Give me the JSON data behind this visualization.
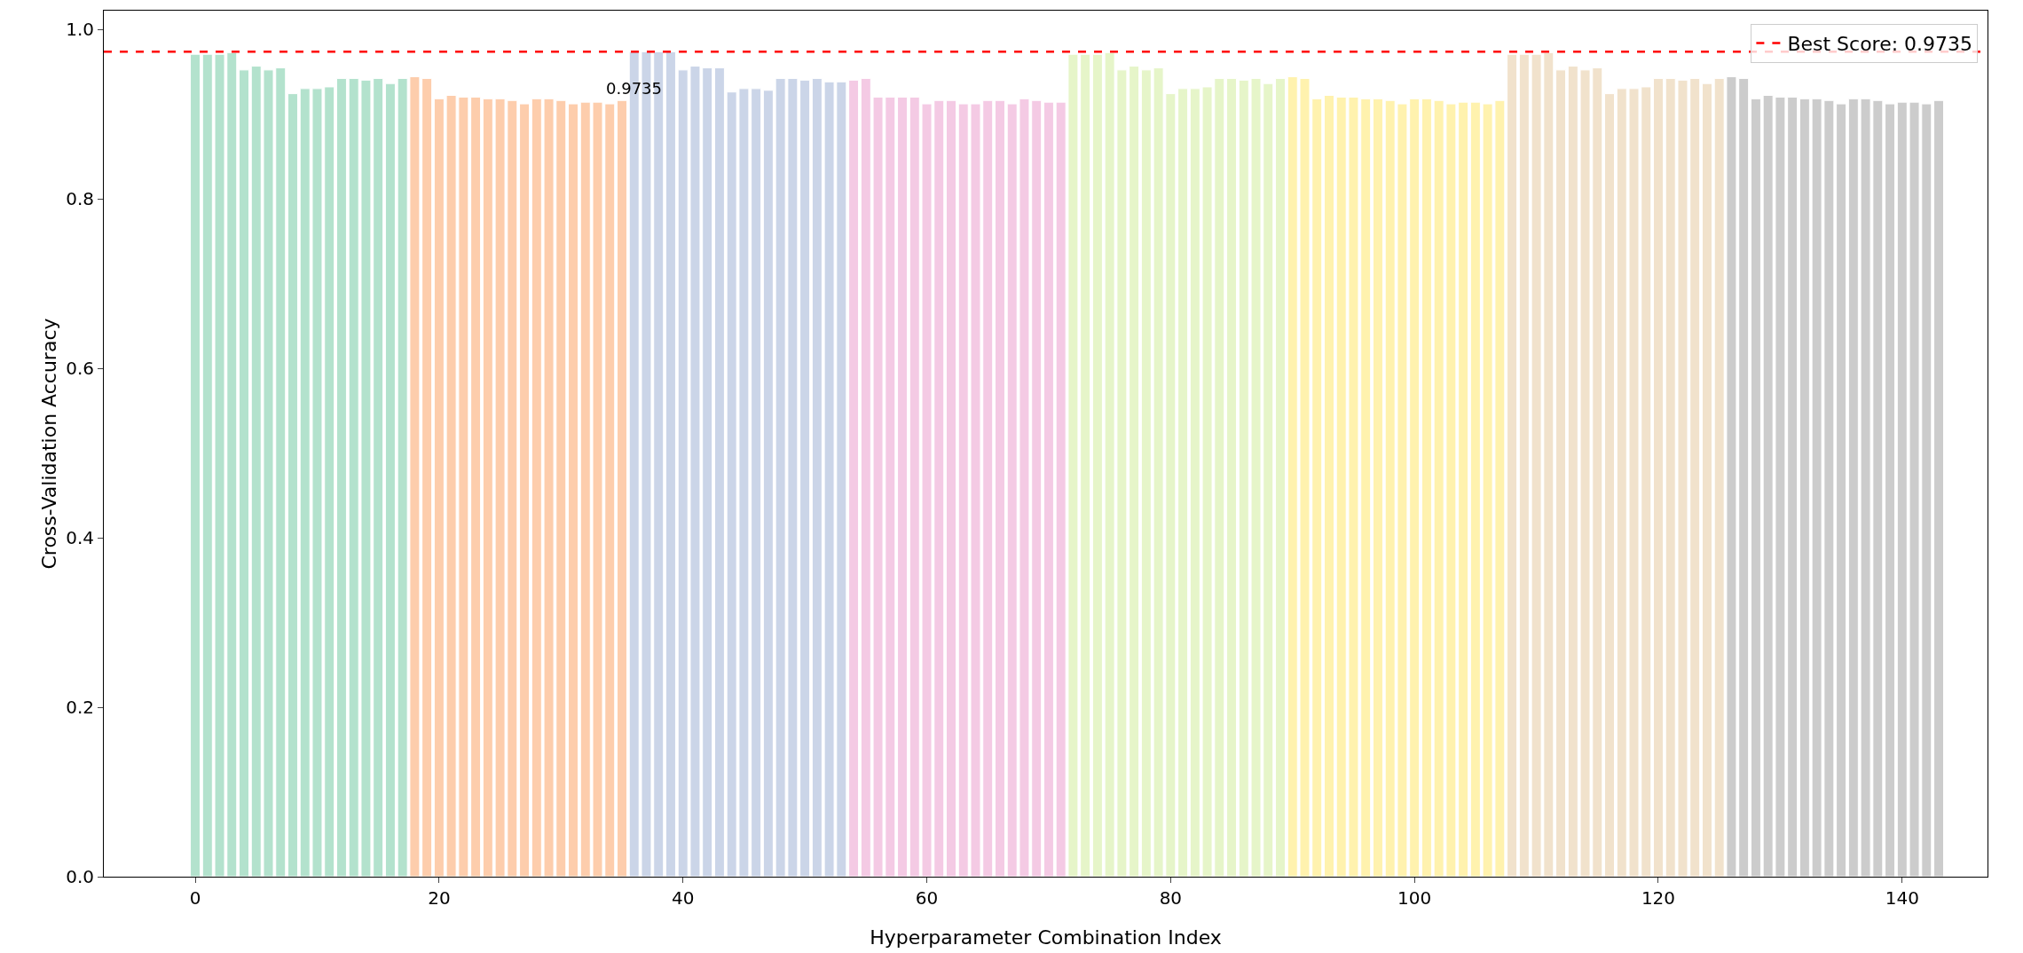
{
  "chart_data": {
    "type": "bar",
    "xlabel": "Hyperparameter Combination Index",
    "ylabel": "Cross-Validation Accuracy",
    "x": [
      0,
      1,
      2,
      3,
      4,
      5,
      6,
      7,
      8,
      9,
      10,
      11,
      12,
      13,
      14,
      15,
      16,
      17,
      18,
      19,
      20,
      21,
      22,
      23,
      24,
      25,
      26,
      27,
      28,
      29,
      30,
      31,
      32,
      33,
      34,
      35,
      36,
      37,
      38,
      39,
      40,
      41,
      42,
      43,
      44,
      45,
      46,
      47,
      48,
      49,
      50,
      51,
      52,
      53,
      54,
      55,
      56,
      57,
      58,
      59,
      60,
      61,
      62,
      63,
      64,
      65,
      66,
      67,
      68,
      69,
      70,
      71,
      72,
      73,
      74,
      75,
      76,
      77,
      78,
      79,
      80,
      81,
      82,
      83,
      84,
      85,
      86,
      87,
      88,
      89,
      90,
      91,
      92,
      93,
      94,
      95,
      96,
      97,
      98,
      99,
      100,
      101,
      102,
      103,
      104,
      105,
      106,
      107,
      108,
      109,
      110,
      111,
      112,
      113,
      114,
      115,
      116,
      117,
      118,
      119,
      120,
      121,
      122,
      123,
      124,
      125,
      126,
      127,
      128,
      129,
      130,
      131,
      132,
      133,
      134,
      135,
      136,
      137,
      138,
      139,
      140,
      141,
      142,
      143
    ],
    "values": [
      0.9705,
      0.9705,
      0.9705,
      0.9725,
      0.952,
      0.9565,
      0.952,
      0.9545,
      0.924,
      0.93,
      0.93,
      0.932,
      0.942,
      0.942,
      0.94,
      0.942,
      0.936,
      0.942,
      0.944,
      0.942,
      0.918,
      0.922,
      0.92,
      0.92,
      0.918,
      0.918,
      0.916,
      0.912,
      0.918,
      0.918,
      0.916,
      0.912,
      0.914,
      0.914,
      0.912,
      0.916,
      0.9735,
      0.9735,
      0.9735,
      0.9735,
      0.952,
      0.9565,
      0.9545,
      0.9545,
      0.926,
      0.93,
      0.93,
      0.928,
      0.942,
      0.942,
      0.94,
      0.942,
      0.938,
      0.938,
      0.94,
      0.942,
      0.92,
      0.92,
      0.92,
      0.92,
      0.912,
      0.916,
      0.916,
      0.912,
      0.912,
      0.916,
      0.916,
      0.912,
      0.918,
      0.916,
      0.914,
      0.914,
      0.9705,
      0.9705,
      0.9705,
      0.9725,
      0.952,
      0.9565,
      0.952,
      0.9545,
      0.924,
      0.93,
      0.93,
      0.932,
      0.942,
      0.942,
      0.94,
      0.942,
      0.936,
      0.942,
      0.944,
      0.942,
      0.918,
      0.922,
      0.92,
      0.92,
      0.918,
      0.918,
      0.916,
      0.912,
      0.918,
      0.918,
      0.916,
      0.912,
      0.914,
      0.914,
      0.912,
      0.916,
      0.9705,
      0.9705,
      0.9705,
      0.9725,
      0.952,
      0.9565,
      0.952,
      0.9545,
      0.924,
      0.93,
      0.93,
      0.932,
      0.942,
      0.942,
      0.94,
      0.942,
      0.936,
      0.942,
      0.944,
      0.942,
      0.918,
      0.922,
      0.92,
      0.92,
      0.918,
      0.918,
      0.916,
      0.912,
      0.918,
      0.918,
      0.916,
      0.912,
      0.914,
      0.914,
      0.912,
      0.916
    ],
    "colors": [
      "#b3e2cd",
      "#b3e2cd",
      "#b3e2cd",
      "#b3e2cd",
      "#b3e2cd",
      "#b3e2cd",
      "#b3e2cd",
      "#b3e2cd",
      "#b3e2cd",
      "#b3e2cd",
      "#b3e2cd",
      "#b3e2cd",
      "#b3e2cd",
      "#b3e2cd",
      "#b3e2cd",
      "#b3e2cd",
      "#b3e2cd",
      "#b3e2cd",
      "#fdcdac",
      "#fdcdac",
      "#fdcdac",
      "#fdcdac",
      "#fdcdac",
      "#fdcdac",
      "#fdcdac",
      "#fdcdac",
      "#fdcdac",
      "#fdcdac",
      "#fdcdac",
      "#fdcdac",
      "#fdcdac",
      "#fdcdac",
      "#fdcdac",
      "#fdcdac",
      "#fdcdac",
      "#fdcdac",
      "#cbd5e8",
      "#cbd5e8",
      "#cbd5e8",
      "#cbd5e8",
      "#cbd5e8",
      "#cbd5e8",
      "#cbd5e8",
      "#cbd5e8",
      "#cbd5e8",
      "#cbd5e8",
      "#cbd5e8",
      "#cbd5e8",
      "#cbd5e8",
      "#cbd5e8",
      "#cbd5e8",
      "#cbd5e8",
      "#cbd5e8",
      "#cbd5e8",
      "#f4cae4",
      "#f4cae4",
      "#f4cae4",
      "#f4cae4",
      "#f4cae4",
      "#f4cae4",
      "#f4cae4",
      "#f4cae4",
      "#f4cae4",
      "#f4cae4",
      "#f4cae4",
      "#f4cae4",
      "#f4cae4",
      "#f4cae4",
      "#f4cae4",
      "#f4cae4",
      "#f4cae4",
      "#f4cae4",
      "#e6f5c9",
      "#e6f5c9",
      "#e6f5c9",
      "#e6f5c9",
      "#e6f5c9",
      "#e6f5c9",
      "#e6f5c9",
      "#e6f5c9",
      "#e6f5c9",
      "#e6f5c9",
      "#e6f5c9",
      "#e6f5c9",
      "#e6f5c9",
      "#e6f5c9",
      "#e6f5c9",
      "#e6f5c9",
      "#e6f5c9",
      "#e6f5c9",
      "#fff2ae",
      "#fff2ae",
      "#fff2ae",
      "#fff2ae",
      "#fff2ae",
      "#fff2ae",
      "#fff2ae",
      "#fff2ae",
      "#fff2ae",
      "#fff2ae",
      "#fff2ae",
      "#fff2ae",
      "#fff2ae",
      "#fff2ae",
      "#fff2ae",
      "#fff2ae",
      "#fff2ae",
      "#fff2ae",
      "#f1e2cc",
      "#f1e2cc",
      "#f1e2cc",
      "#f1e2cc",
      "#f1e2cc",
      "#f1e2cc",
      "#f1e2cc",
      "#f1e2cc",
      "#f1e2cc",
      "#f1e2cc",
      "#f1e2cc",
      "#f1e2cc",
      "#f1e2cc",
      "#f1e2cc",
      "#f1e2cc",
      "#f1e2cc",
      "#f1e2cc",
      "#f1e2cc",
      "#cccccc",
      "#cccccc",
      "#cccccc",
      "#cccccc",
      "#cccccc",
      "#cccccc",
      "#cccccc",
      "#cccccc",
      "#cccccc",
      "#cccccc",
      "#cccccc",
      "#cccccc",
      "#cccccc",
      "#cccccc",
      "#cccccc",
      "#cccccc",
      "#cccccc",
      "#cccccc"
    ],
    "xlim": [
      -7.5,
      147
    ],
    "xticks": [
      0,
      20,
      40,
      60,
      80,
      100,
      120,
      140
    ],
    "ylim": [
      0,
      1.022
    ],
    "yticks": [
      {
        "value": 0,
        "label": "0.0"
      },
      {
        "value": 0.2,
        "label": "0.2"
      },
      {
        "value": 0.4,
        "label": "0.4"
      },
      {
        "value": 0.6,
        "label": "0.6"
      },
      {
        "value": 0.8,
        "label": "0.8"
      },
      {
        "value": 1,
        "label": "1.0"
      }
    ],
    "ref_lines": [
      {
        "axis": "y",
        "value": 0.9735,
        "label": "Best Score: 0.9735",
        "color": "#ff0000",
        "line_style": "dashed"
      }
    ],
    "annotations": [
      {
        "text": "0.9735",
        "x": 36,
        "y": 0.93
      }
    ],
    "legend": "top right",
    "grid": false
  }
}
